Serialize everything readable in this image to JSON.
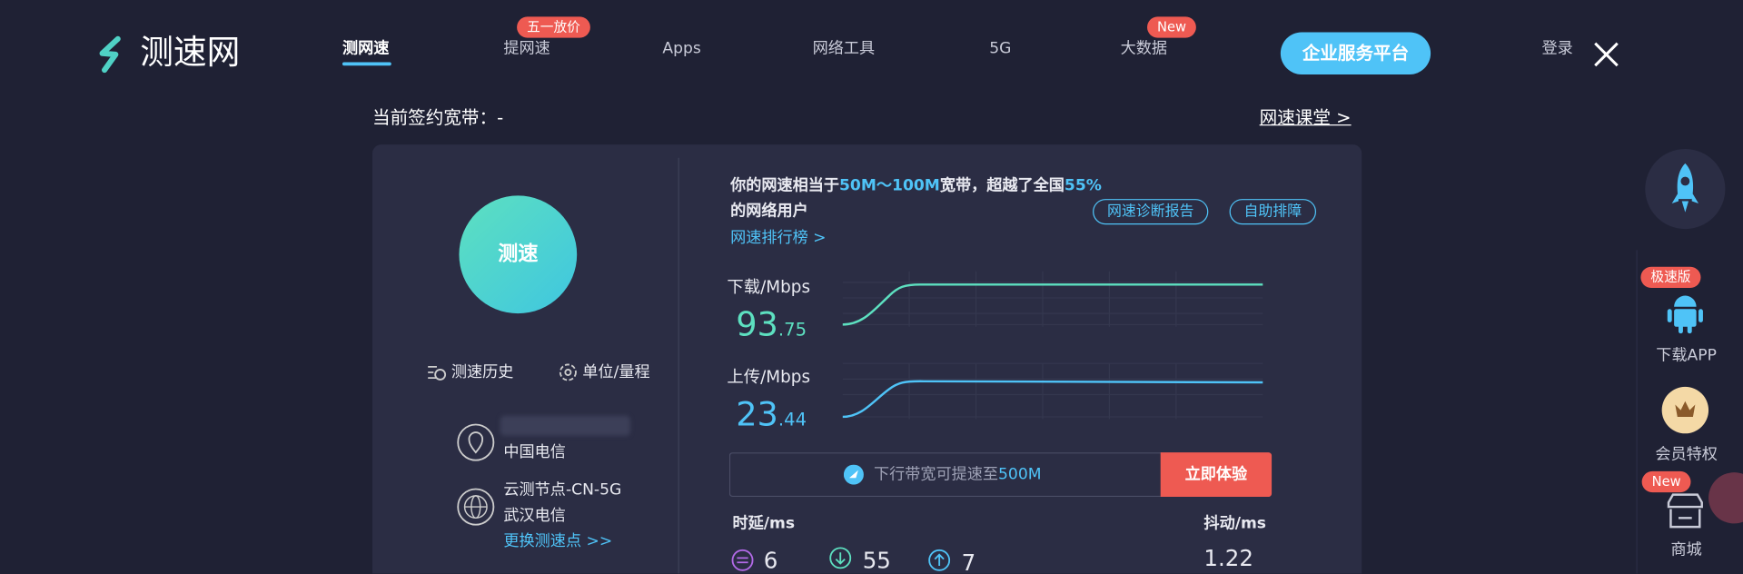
{
  "nav": {
    "logo": "测速网",
    "items": [
      "测网速",
      "提网速",
      "Apps",
      "网络工具",
      "5G",
      "大数据"
    ],
    "badges": [
      "五一放价",
      "New"
    ],
    "enterprise": "企业服务平台",
    "login": "登录"
  },
  "header": {
    "contract_label": "当前签约宽带：",
    "contract_value": "-",
    "course_link": "网速课堂 >"
  },
  "left": {
    "start_button": "测速",
    "history": "测速历史",
    "units": "单位/量程",
    "isp": "中国电信",
    "node": "云测节点-CN-5G",
    "node_isp": "武汉电信",
    "change_node": "更换测速点 >>"
  },
  "summary": {
    "text_1": "你的网速相当于",
    "range": "50M～100M",
    "text_2": "宽带，超越了全国",
    "percent": "55%",
    "text_3": "的网络用户",
    "ranking": "网速排行榜 >",
    "diagnosis": "网速诊断报告",
    "troubleshoot": "自助排障"
  },
  "download": {
    "label": "下载/Mbps",
    "integer": "93",
    "decimal": ".75"
  },
  "upload": {
    "label": "上传/Mbps",
    "integer": "23",
    "decimal": ".44"
  },
  "promo": {
    "text": "下行带宽可提速至",
    "highlight": "500M",
    "button": "立即体验"
  },
  "latency": {
    "label": "时延/ms",
    "idle": "6",
    "download": "55",
    "upload": "7"
  },
  "jitter": {
    "label": "抖动/ms",
    "value": "1.22"
  },
  "sidebar": {
    "fast_badge": "极速版",
    "download_app": "下载APP",
    "vip": "会员特权",
    "new_badge": "New",
    "shop": "商城"
  }
}
